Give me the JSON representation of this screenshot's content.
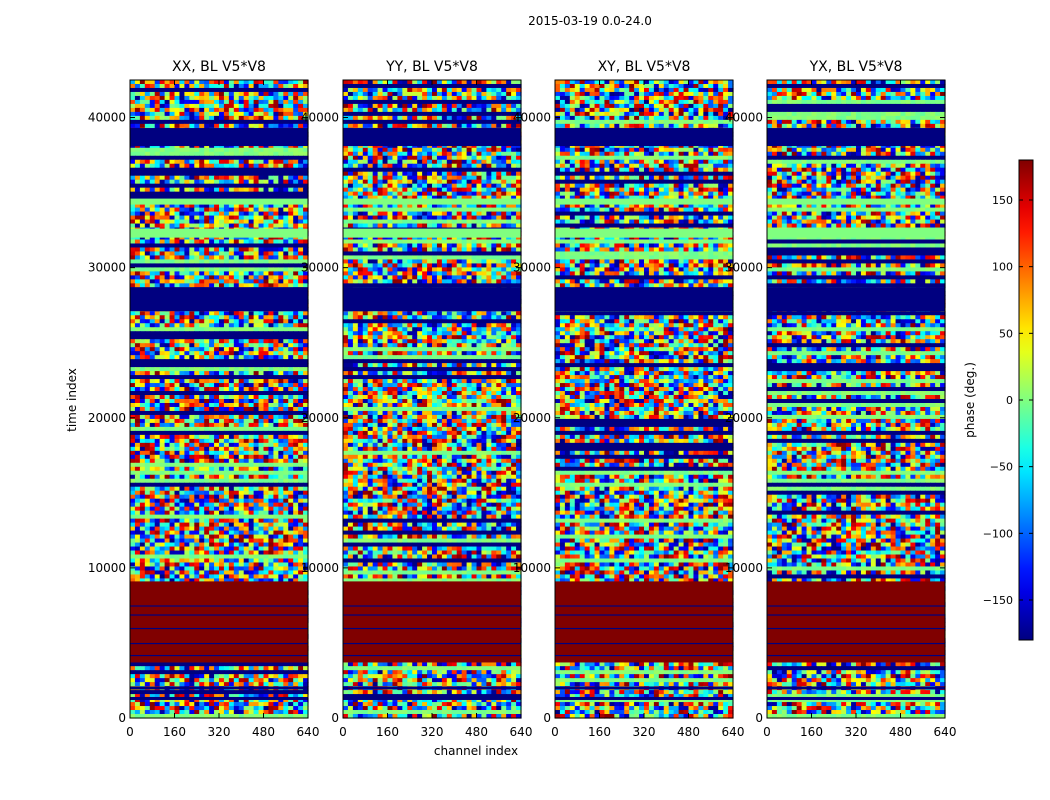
{
  "figure": {
    "suptitle": "2015-03-19 0.0-24.0"
  },
  "chart_data": [
    {
      "type": "heatmap",
      "title": "XX, BL V5*V8",
      "xlabel": "channel index",
      "ylabel": "time index",
      "xlim": [
        0,
        640
      ],
      "ylim": [
        0,
        42500
      ],
      "xticks": [
        0,
        160,
        320,
        480,
        640
      ],
      "yticks": [
        0,
        10000,
        20000,
        30000,
        40000
      ],
      "colormap": "jet",
      "clim": [
        -180,
        180
      ]
    },
    {
      "type": "heatmap",
      "title": "YY, BL V5*V8",
      "xlabel": "channel index",
      "ylabel": "",
      "xlim": [
        0,
        640
      ],
      "ylim": [
        0,
        42500
      ],
      "xticks": [
        0,
        160,
        320,
        480,
        640
      ],
      "yticks": [
        0,
        10000,
        20000,
        30000,
        40000
      ],
      "colormap": "jet",
      "clim": [
        -180,
        180
      ]
    },
    {
      "type": "heatmap",
      "title": "XY, BL V5*V8",
      "xlabel": "",
      "ylabel": "",
      "xlim": [
        0,
        640
      ],
      "ylim": [
        0,
        42500
      ],
      "xticks": [
        0,
        160,
        320,
        480,
        640
      ],
      "yticks": [
        0,
        10000,
        20000,
        30000,
        40000
      ],
      "colormap": "jet",
      "clim": [
        -180,
        180
      ]
    },
    {
      "type": "heatmap",
      "title": "YX, BL V5*V8",
      "xlabel": "",
      "ylabel": "",
      "xlim": [
        0,
        640
      ],
      "ylim": [
        0,
        42500
      ],
      "xticks": [
        0,
        160,
        320,
        480,
        640
      ],
      "yticks": [
        0,
        10000,
        20000,
        30000,
        40000
      ],
      "colormap": "jet",
      "clim": [
        -180,
        180
      ]
    }
  ],
  "colorbar": {
    "label": "phase (deg.)",
    "range": [
      -180,
      180
    ],
    "ticks": [
      -150,
      -100,
      -50,
      0,
      50,
      100,
      150
    ],
    "tick_labels": [
      "−150",
      "−100",
      "−50",
      "0",
      "50",
      "100",
      "150"
    ]
  },
  "axis_labels": {
    "x": "channel index",
    "y": "time index"
  },
  "bands": {
    "masked_value": -180,
    "saturated_value": 180,
    "blocks": [
      {
        "from": 3700,
        "to": 9100,
        "value": 180
      },
      {
        "from": 27100,
        "to": 28700,
        "value": -180
      },
      {
        "from": 38100,
        "to": 39300,
        "value": -180
      },
      {
        "from": 32000,
        "to": 32600,
        "value": 0
      },
      {
        "from": 34200,
        "to": 34600,
        "value": 0
      },
      {
        "from": 1900,
        "to": 2100,
        "value": -180
      },
      {
        "from": 1200,
        "to": 1400,
        "value": -180
      }
    ]
  }
}
